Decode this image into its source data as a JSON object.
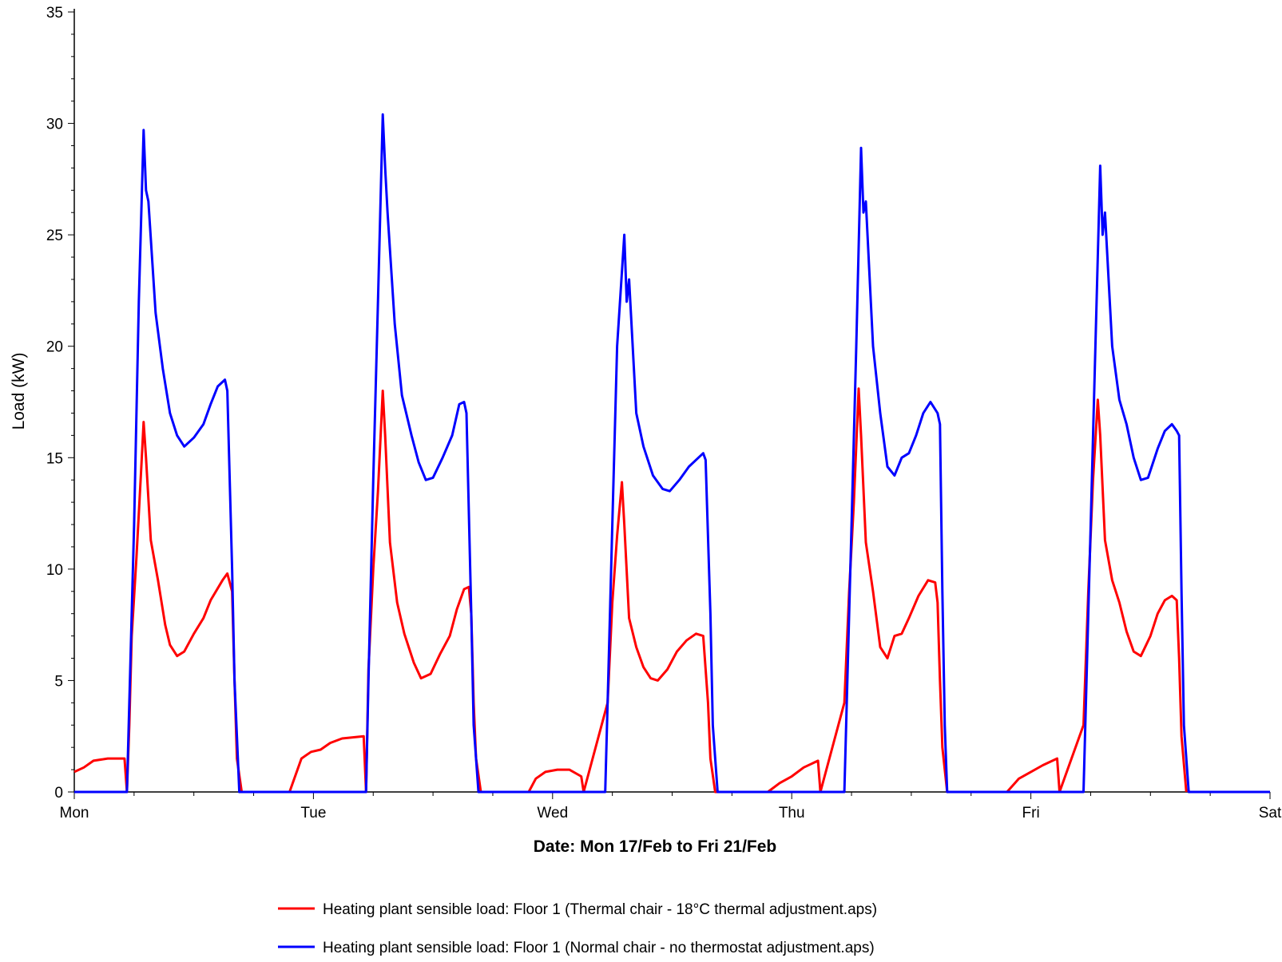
{
  "chart_data": {
    "type": "line",
    "title": "",
    "xlabel": "Date: Mon 17/Feb to Fri 21/Feb",
    "ylabel": "Load (kW)",
    "ylim": [
      0,
      35
    ],
    "yticks": [
      0,
      5,
      10,
      15,
      20,
      25,
      30,
      35
    ],
    "xlim": [
      0,
      5
    ],
    "xticks": [
      {
        "label": "Mon",
        "day": 0
      },
      {
        "label": "Tue",
        "day": 1
      },
      {
        "label": "Wed",
        "day": 2
      },
      {
        "label": "Thu",
        "day": 3
      },
      {
        "label": "Fri",
        "day": 4
      },
      {
        "label": "Sat",
        "day": 5
      }
    ],
    "x_unit": "days from Mon 17/Feb 00:00",
    "grid": false,
    "legend_position": "bottom",
    "series": [
      {
        "name": "Heating plant sensible load: Floor 1 (Thermal chair - 18°C thermal adjustment.aps)",
        "color": "#ff0000",
        "points": [
          [
            0.0,
            0.9
          ],
          [
            0.04,
            1.1
          ],
          [
            0.08,
            1.4
          ],
          [
            0.14,
            1.5
          ],
          [
            0.21,
            1.5
          ],
          [
            0.22,
            0
          ],
          [
            0.23,
            3.0
          ],
          [
            0.24,
            7.0
          ],
          [
            0.26,
            10.5
          ],
          [
            0.28,
            14.5
          ],
          [
            0.29,
            16.6
          ],
          [
            0.3,
            15.0
          ],
          [
            0.32,
            11.3
          ],
          [
            0.35,
            9.5
          ],
          [
            0.38,
            7.5
          ],
          [
            0.4,
            6.6
          ],
          [
            0.43,
            6.1
          ],
          [
            0.46,
            6.3
          ],
          [
            0.5,
            7.1
          ],
          [
            0.54,
            7.8
          ],
          [
            0.57,
            8.6
          ],
          [
            0.62,
            9.5
          ],
          [
            0.64,
            9.8
          ],
          [
            0.66,
            9.0
          ],
          [
            0.67,
            5.0
          ],
          [
            0.68,
            1.5
          ],
          [
            0.7,
            0
          ],
          [
            0.9,
            0
          ],
          [
            0.95,
            1.5
          ],
          [
            0.99,
            1.8
          ],
          [
            1.03,
            1.9
          ],
          [
            1.07,
            2.2
          ],
          [
            1.12,
            2.4
          ],
          [
            1.21,
            2.5
          ],
          [
            1.22,
            0
          ],
          [
            1.23,
            5.5
          ],
          [
            1.25,
            10.0
          ],
          [
            1.27,
            13.5
          ],
          [
            1.29,
            18.0
          ],
          [
            1.3,
            16.0
          ],
          [
            1.32,
            11.2
          ],
          [
            1.35,
            8.5
          ],
          [
            1.38,
            7.1
          ],
          [
            1.42,
            5.8
          ],
          [
            1.45,
            5.1
          ],
          [
            1.49,
            5.3
          ],
          [
            1.53,
            6.2
          ],
          [
            1.57,
            7.0
          ],
          [
            1.6,
            8.2
          ],
          [
            1.63,
            9.1
          ],
          [
            1.65,
            9.2
          ],
          [
            1.66,
            8.0
          ],
          [
            1.67,
            4.0
          ],
          [
            1.68,
            1.5
          ],
          [
            1.7,
            0
          ],
          [
            1.9,
            0
          ],
          [
            1.93,
            0.6
          ],
          [
            1.97,
            0.9
          ],
          [
            2.02,
            1.0
          ],
          [
            2.07,
            1.0
          ],
          [
            2.12,
            0.7
          ],
          [
            2.13,
            0
          ],
          [
            2.23,
            4.0
          ],
          [
            2.25,
            8.5
          ],
          [
            2.27,
            11.5
          ],
          [
            2.29,
            13.9
          ],
          [
            2.3,
            12.0
          ],
          [
            2.32,
            7.8
          ],
          [
            2.35,
            6.5
          ],
          [
            2.38,
            5.6
          ],
          [
            2.41,
            5.1
          ],
          [
            2.44,
            5.0
          ],
          [
            2.48,
            5.5
          ],
          [
            2.52,
            6.3
          ],
          [
            2.56,
            6.8
          ],
          [
            2.6,
            7.1
          ],
          [
            2.63,
            7.0
          ],
          [
            2.65,
            4.0
          ],
          [
            2.66,
            1.5
          ],
          [
            2.68,
            0
          ],
          [
            2.9,
            0
          ],
          [
            2.95,
            0.4
          ],
          [
            3.0,
            0.7
          ],
          [
            3.05,
            1.1
          ],
          [
            3.11,
            1.4
          ],
          [
            3.12,
            0
          ],
          [
            3.22,
            4.0
          ],
          [
            3.24,
            9.0
          ],
          [
            3.26,
            13.0
          ],
          [
            3.28,
            18.1
          ],
          [
            3.29,
            16.0
          ],
          [
            3.31,
            11.2
          ],
          [
            3.34,
            9.0
          ],
          [
            3.37,
            6.5
          ],
          [
            3.4,
            6.0
          ],
          [
            3.43,
            7.0
          ],
          [
            3.46,
            7.1
          ],
          [
            3.49,
            7.8
          ],
          [
            3.53,
            8.8
          ],
          [
            3.57,
            9.5
          ],
          [
            3.6,
            9.4
          ],
          [
            3.61,
            8.5
          ],
          [
            3.62,
            5.0
          ],
          [
            3.63,
            2.0
          ],
          [
            3.65,
            0
          ],
          [
            3.9,
            0
          ],
          [
            3.95,
            0.6
          ],
          [
            4.0,
            0.9
          ],
          [
            4.05,
            1.2
          ],
          [
            4.11,
            1.5
          ],
          [
            4.12,
            0
          ],
          [
            4.22,
            3.0
          ],
          [
            4.24,
            9.0
          ],
          [
            4.26,
            14.0
          ],
          [
            4.28,
            17.6
          ],
          [
            4.29,
            16.0
          ],
          [
            4.31,
            11.3
          ],
          [
            4.34,
            9.5
          ],
          [
            4.37,
            8.5
          ],
          [
            4.4,
            7.2
          ],
          [
            4.43,
            6.3
          ],
          [
            4.46,
            6.1
          ],
          [
            4.5,
            7.0
          ],
          [
            4.53,
            8.0
          ],
          [
            4.56,
            8.6
          ],
          [
            4.59,
            8.8
          ],
          [
            4.61,
            8.6
          ],
          [
            4.62,
            6.0
          ],
          [
            4.63,
            2.5
          ],
          [
            4.65,
            0
          ]
        ]
      },
      {
        "name": "Heating plant sensible load: Floor 1 (Normal chair - no thermostat adjustment.aps)",
        "color": "#0000ff",
        "points": [
          [
            0.0,
            0
          ],
          [
            0.22,
            0
          ],
          [
            0.23,
            4.0
          ],
          [
            0.25,
            12.0
          ],
          [
            0.27,
            22.0
          ],
          [
            0.29,
            29.7
          ],
          [
            0.3,
            27.0
          ],
          [
            0.31,
            26.5
          ],
          [
            0.34,
            21.5
          ],
          [
            0.37,
            19.0
          ],
          [
            0.4,
            17.0
          ],
          [
            0.43,
            16.0
          ],
          [
            0.46,
            15.5
          ],
          [
            0.5,
            15.9
          ],
          [
            0.54,
            16.5
          ],
          [
            0.57,
            17.4
          ],
          [
            0.6,
            18.2
          ],
          [
            0.63,
            18.5
          ],
          [
            0.64,
            18.0
          ],
          [
            0.66,
            10.0
          ],
          [
            0.67,
            5.0
          ],
          [
            0.69,
            0
          ],
          [
            1.22,
            0
          ],
          [
            1.23,
            5.0
          ],
          [
            1.25,
            14.0
          ],
          [
            1.27,
            22.0
          ],
          [
            1.29,
            30.4
          ],
          [
            1.3,
            28.0
          ],
          [
            1.31,
            26.0
          ],
          [
            1.34,
            21.0
          ],
          [
            1.37,
            17.8
          ],
          [
            1.41,
            16.0
          ],
          [
            1.44,
            14.8
          ],
          [
            1.47,
            14.0
          ],
          [
            1.5,
            14.1
          ],
          [
            1.54,
            15.0
          ],
          [
            1.58,
            16.0
          ],
          [
            1.61,
            17.4
          ],
          [
            1.63,
            17.5
          ],
          [
            1.64,
            17.0
          ],
          [
            1.66,
            8.0
          ],
          [
            1.67,
            3.0
          ],
          [
            1.69,
            0
          ],
          [
            2.22,
            0
          ],
          [
            2.23,
            4.0
          ],
          [
            2.25,
            12.0
          ],
          [
            2.27,
            20.0
          ],
          [
            2.3,
            25.0
          ],
          [
            2.31,
            22.0
          ],
          [
            2.32,
            23.0
          ],
          [
            2.35,
            17.0
          ],
          [
            2.38,
            15.5
          ],
          [
            2.42,
            14.2
          ],
          [
            2.46,
            13.6
          ],
          [
            2.49,
            13.5
          ],
          [
            2.53,
            14.0
          ],
          [
            2.57,
            14.6
          ],
          [
            2.61,
            15.0
          ],
          [
            2.63,
            15.2
          ],
          [
            2.64,
            14.9
          ],
          [
            2.66,
            8.0
          ],
          [
            2.67,
            3.0
          ],
          [
            2.69,
            0
          ],
          [
            3.22,
            0
          ],
          [
            3.23,
            4.0
          ],
          [
            3.25,
            12.0
          ],
          [
            3.27,
            20.0
          ],
          [
            3.29,
            28.9
          ],
          [
            3.3,
            26.0
          ],
          [
            3.31,
            26.5
          ],
          [
            3.34,
            20.0
          ],
          [
            3.37,
            17.0
          ],
          [
            3.4,
            14.6
          ],
          [
            3.43,
            14.2
          ],
          [
            3.46,
            15.0
          ],
          [
            3.49,
            15.2
          ],
          [
            3.52,
            16.0
          ],
          [
            3.55,
            17.0
          ],
          [
            3.58,
            17.5
          ],
          [
            3.61,
            17.0
          ],
          [
            3.62,
            16.5
          ],
          [
            3.63,
            9.0
          ],
          [
            3.64,
            3.0
          ],
          [
            3.65,
            0
          ],
          [
            4.22,
            0
          ],
          [
            4.23,
            4.0
          ],
          [
            4.25,
            12.0
          ],
          [
            4.27,
            20.0
          ],
          [
            4.29,
            28.1
          ],
          [
            4.3,
            25.0
          ],
          [
            4.31,
            26.0
          ],
          [
            4.34,
            20.0
          ],
          [
            4.37,
            17.6
          ],
          [
            4.4,
            16.5
          ],
          [
            4.43,
            15.0
          ],
          [
            4.46,
            14.0
          ],
          [
            4.49,
            14.1
          ],
          [
            4.53,
            15.4
          ],
          [
            4.56,
            16.2
          ],
          [
            4.59,
            16.5
          ],
          [
            4.61,
            16.2
          ],
          [
            4.62,
            16.0
          ],
          [
            4.63,
            9.0
          ],
          [
            4.64,
            3.0
          ],
          [
            4.66,
            0
          ],
          [
            5.0,
            0
          ]
        ]
      }
    ]
  }
}
